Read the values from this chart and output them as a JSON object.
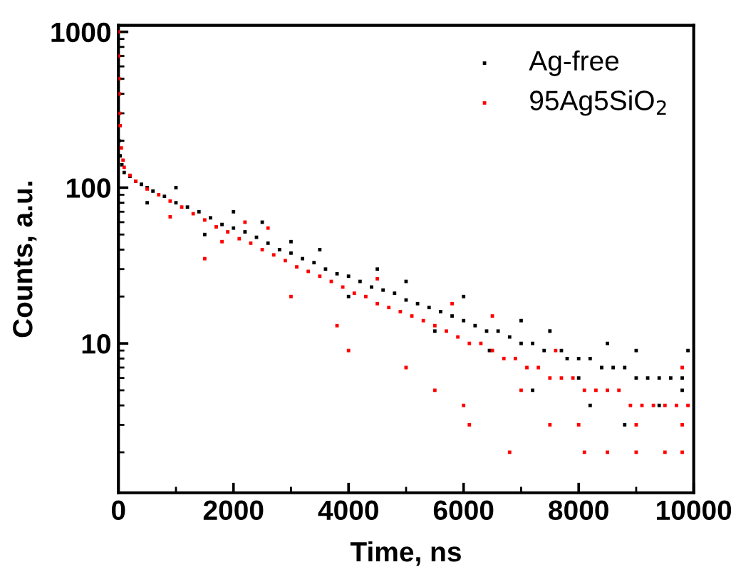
{
  "chart_data": {
    "type": "scatter",
    "xlabel": "Time, ns",
    "ylabel": "Counts, a.u.",
    "log": "y",
    "xlim": [
      0,
      10000
    ],
    "xticks": [
      0,
      2000,
      4000,
      6000,
      8000,
      10000
    ],
    "ylim": [
      1.1,
      1100
    ],
    "yticks": [
      10,
      100,
      1000
    ],
    "grid": false,
    "legend": "top right",
    "marker": "square",
    "series": [
      {
        "name": "Ag-free",
        "color": "#000000",
        "x": [
          0,
          10,
          30,
          60,
          100,
          200,
          300,
          400,
          500,
          600,
          800,
          1000,
          1200,
          1400,
          1600,
          1800,
          2000,
          2200,
          2400,
          2600,
          2800,
          3000,
          3200,
          3400,
          3600,
          3800,
          4000,
          4200,
          4400,
          4600,
          4800,
          5000,
          5200,
          5400,
          5600,
          5800,
          6000,
          6200,
          6400,
          6600,
          6800,
          7000,
          7200,
          7400,
          7700,
          7800,
          8000,
          8200,
          8400,
          8600,
          8800,
          9000,
          9200,
          9400,
          9600,
          9800,
          500,
          1000,
          1500,
          2000,
          2500,
          3000,
          3500,
          4000,
          4500,
          5000,
          5500,
          6000,
          6450,
          7000,
          7500,
          8000,
          8500,
          9000,
          9400,
          9800,
          8200,
          7200,
          8800,
          9900
        ],
        "values": [
          300,
          200,
          160,
          140,
          125,
          118,
          110,
          105,
          100,
          95,
          88,
          80,
          75,
          70,
          64,
          58,
          55,
          52,
          48,
          44,
          40,
          38,
          35,
          33,
          30,
          28,
          27,
          25,
          23,
          22,
          21,
          19,
          18,
          17,
          16,
          15,
          14,
          13,
          12,
          12,
          11,
          10,
          10,
          9,
          9,
          8,
          8,
          8,
          7,
          7,
          7,
          6,
          6,
          6,
          6,
          6,
          80,
          100,
          50,
          70,
          60,
          45,
          40,
          20,
          30,
          25,
          12,
          20,
          9,
          14,
          12,
          6,
          10,
          9,
          4,
          5,
          4,
          5,
          3,
          9
        ]
      },
      {
        "name": "95Ag5SiO$_{2}$",
        "color": "#ff0000",
        "x": [
          0,
          5,
          10,
          15,
          20,
          30,
          50,
          80,
          100,
          200,
          300,
          500,
          700,
          900,
          1100,
          1300,
          1500,
          1700,
          1900,
          2100,
          2300,
          2500,
          2700,
          2900,
          3100,
          3300,
          3500,
          3700,
          3900,
          4100,
          4300,
          4500,
          4700,
          4900,
          5100,
          5300,
          5500,
          5700,
          5900,
          6100,
          6300,
          6500,
          6700,
          6900,
          7100,
          7300,
          7500,
          7700,
          7900,
          8100,
          8300,
          8500,
          8700,
          8900,
          9100,
          9300,
          9500,
          9700,
          9900,
          3000,
          3800,
          1500,
          2200,
          4000,
          5000,
          5500,
          6000,
          6100,
          6800,
          7000,
          7500,
          8100,
          8500,
          9000,
          9500,
          9800,
          8000,
          9000,
          9800,
          7600,
          9800,
          6500,
          5800,
          4500,
          2600,
          900,
          1800
        ],
        "values": [
          1000,
          700,
          500,
          400,
          300,
          250,
          180,
          150,
          135,
          120,
          110,
          98,
          90,
          82,
          75,
          68,
          62,
          56,
          52,
          47,
          44,
          40,
          37,
          34,
          31,
          29,
          27,
          25,
          23,
          21,
          20,
          18,
          17,
          16,
          15,
          14,
          13,
          12,
          11,
          10,
          10,
          9,
          8,
          8,
          7,
          7,
          6,
          6,
          6,
          5,
          5,
          5,
          5,
          4,
          4,
          4,
          4,
          4,
          4,
          20,
          13,
          35,
          60,
          9,
          7,
          5,
          4,
          3,
          2,
          5,
          3,
          2,
          2,
          2,
          2,
          2,
          3,
          3,
          3,
          9,
          7,
          15,
          18,
          26,
          55,
          65,
          45
        ]
      }
    ]
  }
}
